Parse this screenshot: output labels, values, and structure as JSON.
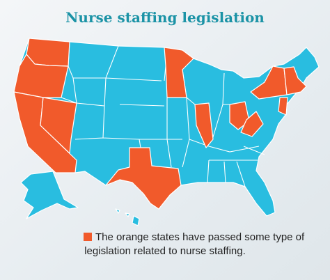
{
  "title": "Nurse staffing legislation",
  "legend": {
    "lines": [
      "The orange states have passed some type of",
      "legislation related to nurse staffing."
    ]
  }
}
